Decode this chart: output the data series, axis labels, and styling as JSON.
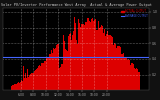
{
  "title": "Solar PV/Inverter Performance West Array  Actual & Average Power Output",
  "legend_actual": "ACTUAL OUTPUT",
  "legend_avg": "AVERAGE OUTPUT",
  "bg_color": "#111111",
  "plot_bg_color": "#000000",
  "fill_color": "#dd0000",
  "avg_line_color": "#4466ff",
  "text_color": "#aaaaaa",
  "title_color": "#cccccc",
  "ylim": [
    0,
    1.05
  ],
  "num_points": 144,
  "avg_line_y": 0.42,
  "x_tick_labels": [
    "6:00",
    "8:00",
    "10:00",
    "12:00",
    "14:00",
    "16:00",
    "18:00",
    "20:00"
  ],
  "x_tick_positions": [
    18,
    30,
    42,
    54,
    66,
    78,
    90,
    102
  ],
  "y_tick_labels": [
    "0.2",
    "0.4",
    "0.6",
    "0.8",
    "1.0"
  ],
  "y_tick_positions": [
    0.2,
    0.4,
    0.6,
    0.8,
    1.0
  ]
}
